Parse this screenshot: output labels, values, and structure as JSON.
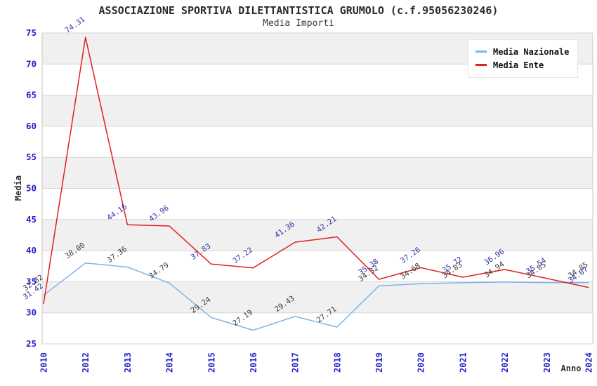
{
  "header": {
    "title": "ASSOCIAZIONE SPORTIVA DILETTANTISTICA GRUMOLO (c.f.95056230246)",
    "subtitle": "Media Importi"
  },
  "legend": {
    "items": [
      {
        "label": "Media Nazionale",
        "color": "#7eb5e8"
      },
      {
        "label": "Media Ente",
        "color": "#e02020"
      }
    ]
  },
  "chart_data": {
    "type": "line",
    "title": "ASSOCIAZIONE SPORTIVA DILETTANTISTICA GRUMOLO (c.f.95056230246)",
    "subtitle": "Media Importi",
    "xlabel": "Anno",
    "ylabel": "Media",
    "x": [
      "2010",
      "2012",
      "2013",
      "2014",
      "2015",
      "2016",
      "2017",
      "2018",
      "2019",
      "2020",
      "2021",
      "2022",
      "2023",
      "2024"
    ],
    "series": [
      {
        "name": "Media Nazionale",
        "color": "#7eb5e8",
        "label_color": "#3c3c3c",
        "values": [
          32.82,
          38.0,
          37.36,
          34.79,
          29.24,
          27.19,
          29.43,
          27.71,
          34.32,
          34.68,
          34.83,
          34.94,
          34.85,
          34.85
        ]
      },
      {
        "name": "Media Ente",
        "color": "#e02020",
        "label_color": "#3434a8",
        "values": [
          31.42,
          74.31,
          44.16,
          43.96,
          37.83,
          37.22,
          41.36,
          42.21,
          35.38,
          37.26,
          35.72,
          36.96,
          35.54,
          34.07
        ]
      }
    ],
    "ylim": [
      25,
      75
    ],
    "ytick_step": 5,
    "grid": true,
    "band_fill": "#f0f0f0",
    "grid_color": "#d6d6d6",
    "spine_color": "#c9c9c9",
    "tick_label_color": "#2222cc",
    "axis_title_color": "#303030",
    "legend_position": "top-right"
  }
}
